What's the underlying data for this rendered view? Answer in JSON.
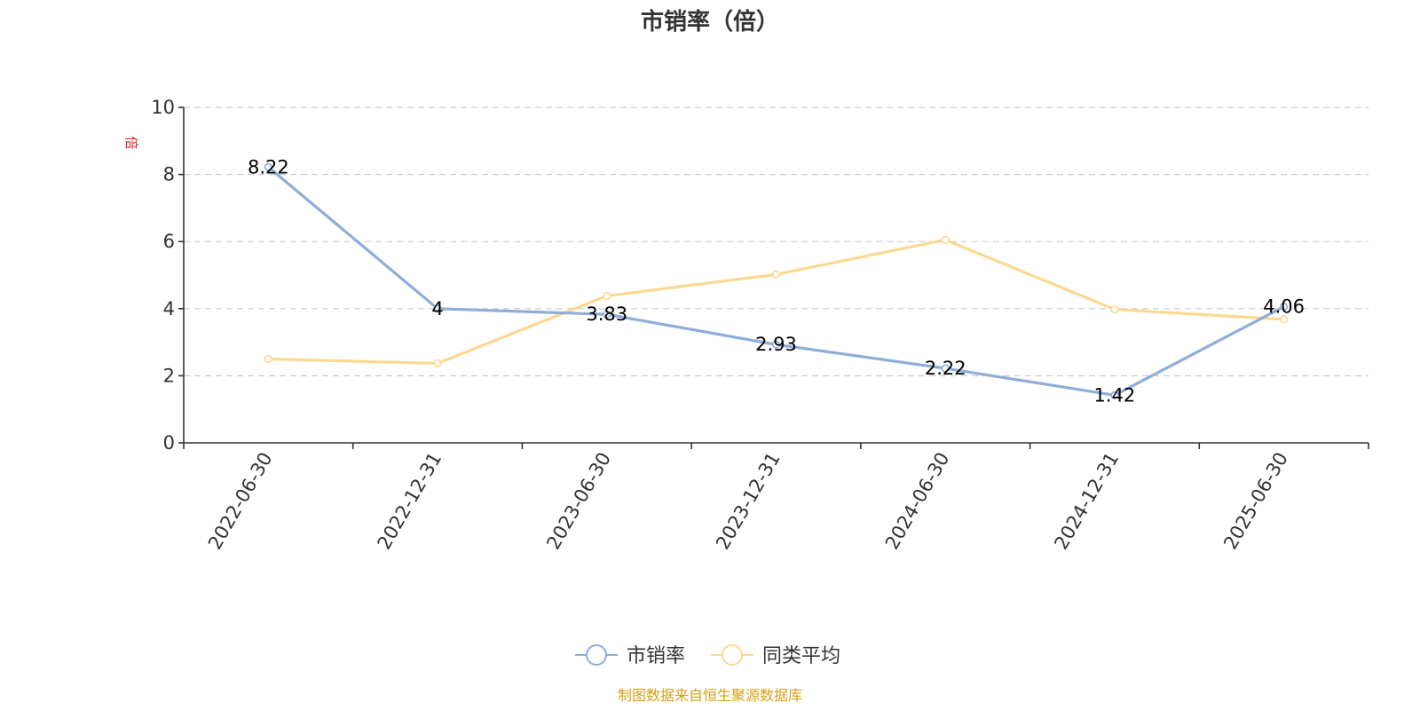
{
  "chart_data": {
    "type": "line",
    "title": "市销率（倍）",
    "ylabel": "倍",
    "xlabel": "",
    "categories": [
      "2022-06-30",
      "2022-12-31",
      "2023-06-30",
      "2023-12-31",
      "2024-06-30",
      "2024-12-31",
      "2025-06-30"
    ],
    "ylim": [
      0,
      10
    ],
    "yticks": [
      0,
      2,
      4,
      6,
      8,
      10
    ],
    "grid": true,
    "legend_position": "bottom-center",
    "series": [
      {
        "name": "市销率",
        "values": [
          8.22,
          4,
          3.83,
          2.93,
          2.22,
          1.42,
          4.06
        ],
        "data_labels": [
          "8.22",
          "4",
          "3.83",
          "2.93",
          "2.22",
          "1.42",
          "4.06"
        ],
        "color": "#8eaed8"
      },
      {
        "name": "同类平均",
        "values": [
          2.5,
          2.37,
          4.38,
          5.02,
          6.05,
          3.98,
          3.68
        ],
        "color": "#fbd992"
      }
    ]
  },
  "source": "制图数据来自恒生聚源数据库",
  "colors": {
    "ylabel": "#e02020",
    "source": "#d4a017"
  }
}
